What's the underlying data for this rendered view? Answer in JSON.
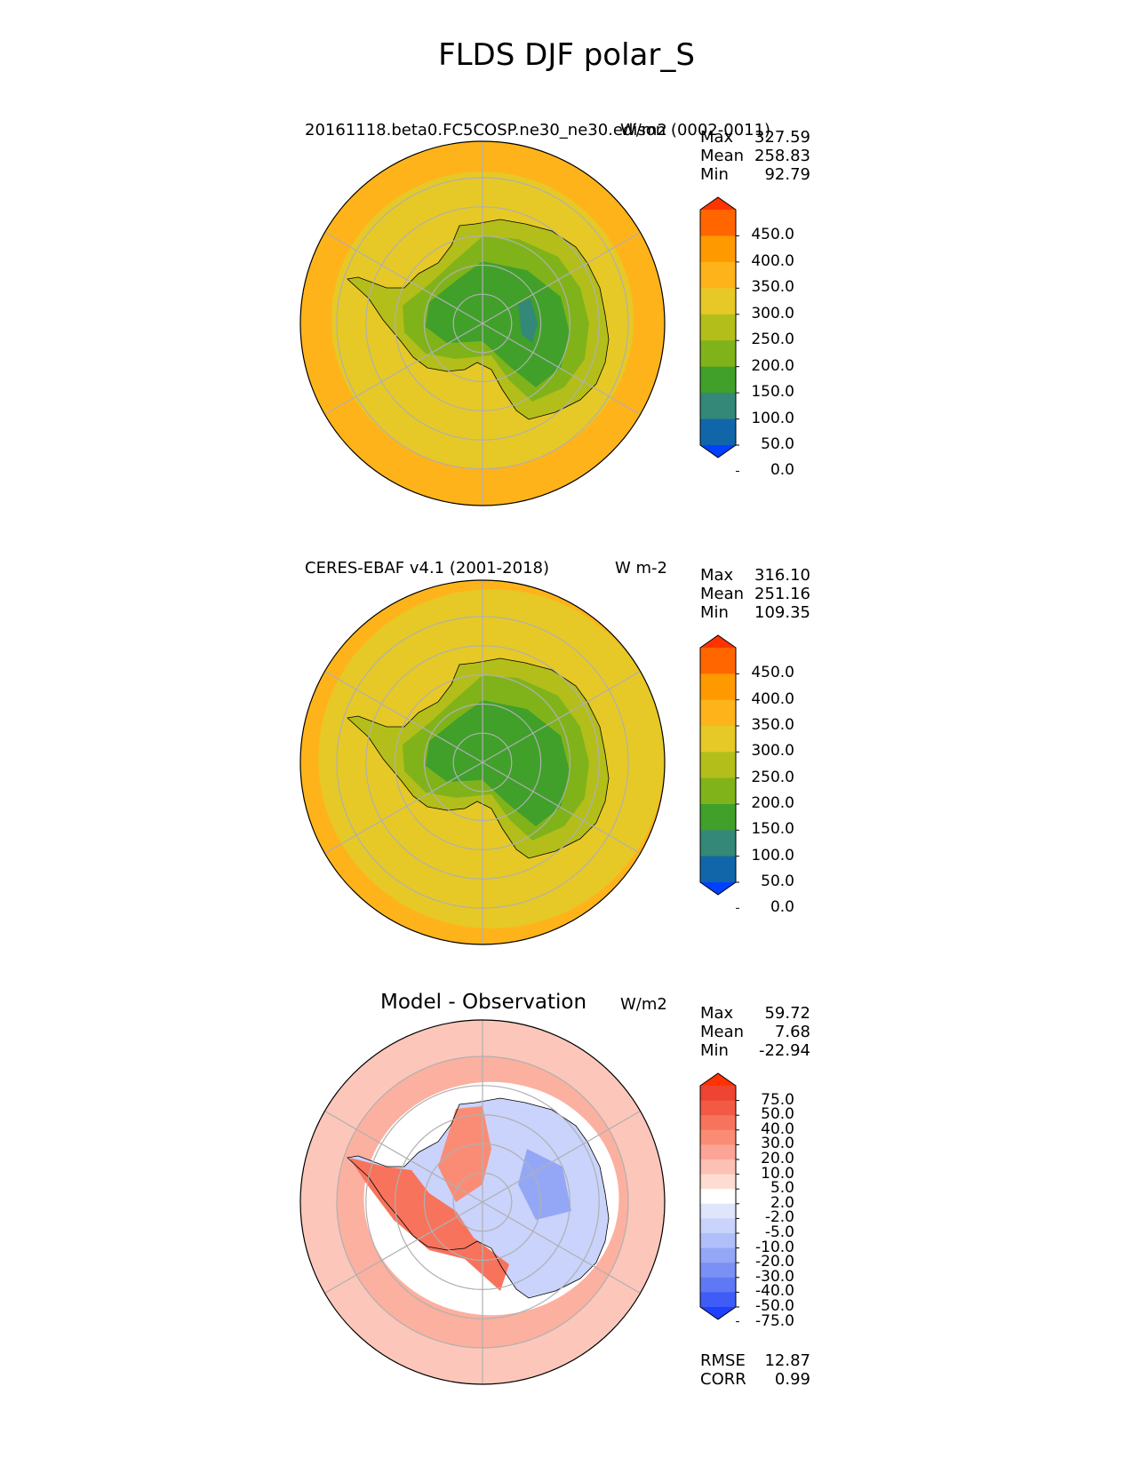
{
  "title": "FLDS DJF polar_S",
  "panels": [
    {
      "title": "20161118.beta0.FC5COSP.ne30_ne30.edison (0002-0011)",
      "units": "W/m2",
      "stats": [
        {
          "label": "Max",
          "value": "327.59"
        },
        {
          "label": "Mean",
          "value": "258.83"
        },
        {
          "label": "Min",
          "value": "92.79"
        }
      ],
      "colorbar": {
        "ticks": [
          "450.0",
          "400.0",
          "350.0",
          "300.0",
          "250.0",
          "200.0",
          "150.0",
          "100.0",
          "50.0",
          "0.0"
        ],
        "colors": [
          "#ff3300",
          "#ff6600",
          "#ff9900",
          "#ffb31a",
          "#e6c926",
          "#b3be1a",
          "#80b31a",
          "#40a02a",
          "#338877",
          "#1166aa",
          "#0040ff"
        ]
      }
    },
    {
      "title": "CERES-EBAF v4.1 (2001-2018)",
      "units": "W m-2",
      "stats": [
        {
          "label": "Max",
          "value": "316.10"
        },
        {
          "label": "Mean",
          "value": "251.16"
        },
        {
          "label": "Min",
          "value": "109.35"
        }
      ],
      "colorbar": {
        "ticks": [
          "450.0",
          "400.0",
          "350.0",
          "300.0",
          "250.0",
          "200.0",
          "150.0",
          "100.0",
          "50.0",
          "0.0"
        ],
        "colors": [
          "#ff3300",
          "#ff6600",
          "#ff9900",
          "#ffb31a",
          "#e6c926",
          "#b3be1a",
          "#80b31a",
          "#40a02a",
          "#338877",
          "#1166aa",
          "#0040ff"
        ]
      }
    },
    {
      "title": "Model - Observation",
      "units": "W/m2",
      "stats": [
        {
          "label": "Max",
          "value": "59.72"
        },
        {
          "label": "Mean",
          "value": "7.68"
        },
        {
          "label": "Min",
          "value": "-22.94"
        }
      ],
      "colorbar": {
        "ticks": [
          "75.0",
          "50.0",
          "40.0",
          "30.0",
          "20.0",
          "10.0",
          "5.0",
          "2.0",
          "-2.0",
          "-5.0",
          "-10.0",
          "-20.0",
          "-30.0",
          "-40.0",
          "-50.0",
          "-75.0"
        ],
        "colors": [
          "#ff3300",
          "#ee4433",
          "#f35a45",
          "#f7735c",
          "#fa8c76",
          "#fca596",
          "#fdc0b4",
          "#fedcd4",
          "#ffffff",
          "#dfe6fb",
          "#c9d3fb",
          "#b0bff9",
          "#94a7f7",
          "#7a90f5",
          "#5f78f5",
          "#3f5cf7",
          "#1f40ff"
        ]
      },
      "rmse": {
        "label": "RMSE",
        "value": "12.87"
      },
      "corr": {
        "label": "CORR",
        "value": "0.99"
      }
    }
  ],
  "map_colors": {
    "ocean_outer": "#ffb31a",
    "ocean_inner": "#e6c926",
    "diff_pos": "#fcb0a0",
    "diff_neg": "#c9d3fb",
    "grid": "#b0b0b0"
  }
}
